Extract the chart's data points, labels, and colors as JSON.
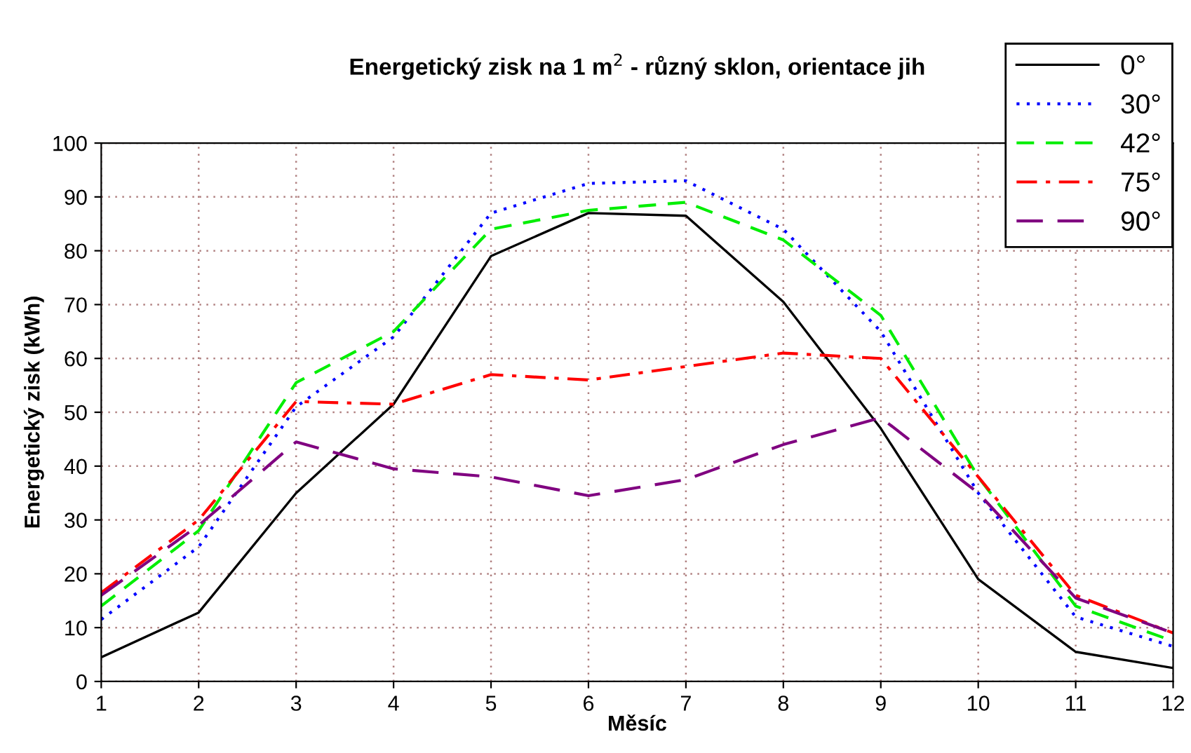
{
  "chart_data": {
    "type": "line",
    "title": "Energetický zisk na 1 m$^{2}$ - různý sklon, orientace jih",
    "xlabel": "Měsíc",
    "ylabel": "Energetický zisk (kWh)",
    "x": [
      1,
      2,
      3,
      4,
      5,
      6,
      7,
      8,
      9,
      10,
      11,
      12
    ],
    "xlim": [
      1,
      12
    ],
    "xticks": [
      1,
      2,
      3,
      4,
      5,
      6,
      7,
      8,
      9,
      10,
      11,
      12
    ],
    "ylim": [
      0,
      100
    ],
    "yticks": [
      0,
      10,
      20,
      30,
      40,
      50,
      60,
      70,
      80,
      90,
      100
    ],
    "grid": true,
    "legend": "top right",
    "marker": "none",
    "series": [
      {
        "name": "0°",
        "color": "#000000",
        "line_style": "solid",
        "values": [
          4.5,
          12.8,
          35,
          51.5,
          79,
          87,
          86.5,
          70.5,
          47,
          19,
          5.5,
          2.5
        ]
      },
      {
        "name": "30°",
        "color": "#0000ff",
        "line_style": "dotted",
        "values": [
          11.5,
          25,
          51,
          64,
          87,
          92.5,
          93,
          84,
          65,
          35,
          12,
          6.5
        ]
      },
      {
        "name": "42°",
        "color": "#00ee00",
        "line_style": "dashed",
        "values": [
          14,
          28,
          55.5,
          65,
          84,
          87.5,
          89,
          82,
          68,
          38,
          14,
          7.5
        ]
      },
      {
        "name": "75°",
        "color": "#ff0000",
        "line_style": "dashdot",
        "values": [
          16.5,
          30,
          52,
          51.5,
          57,
          56,
          58.5,
          61,
          60,
          38,
          16,
          9
        ]
      },
      {
        "name": "90°",
        "color": "#800080",
        "line_style": "longdash",
        "values": [
          16,
          29,
          44.5,
          39.5,
          38,
          34.5,
          37.5,
          44,
          49,
          35,
          15.5,
          9
        ]
      }
    ]
  }
}
